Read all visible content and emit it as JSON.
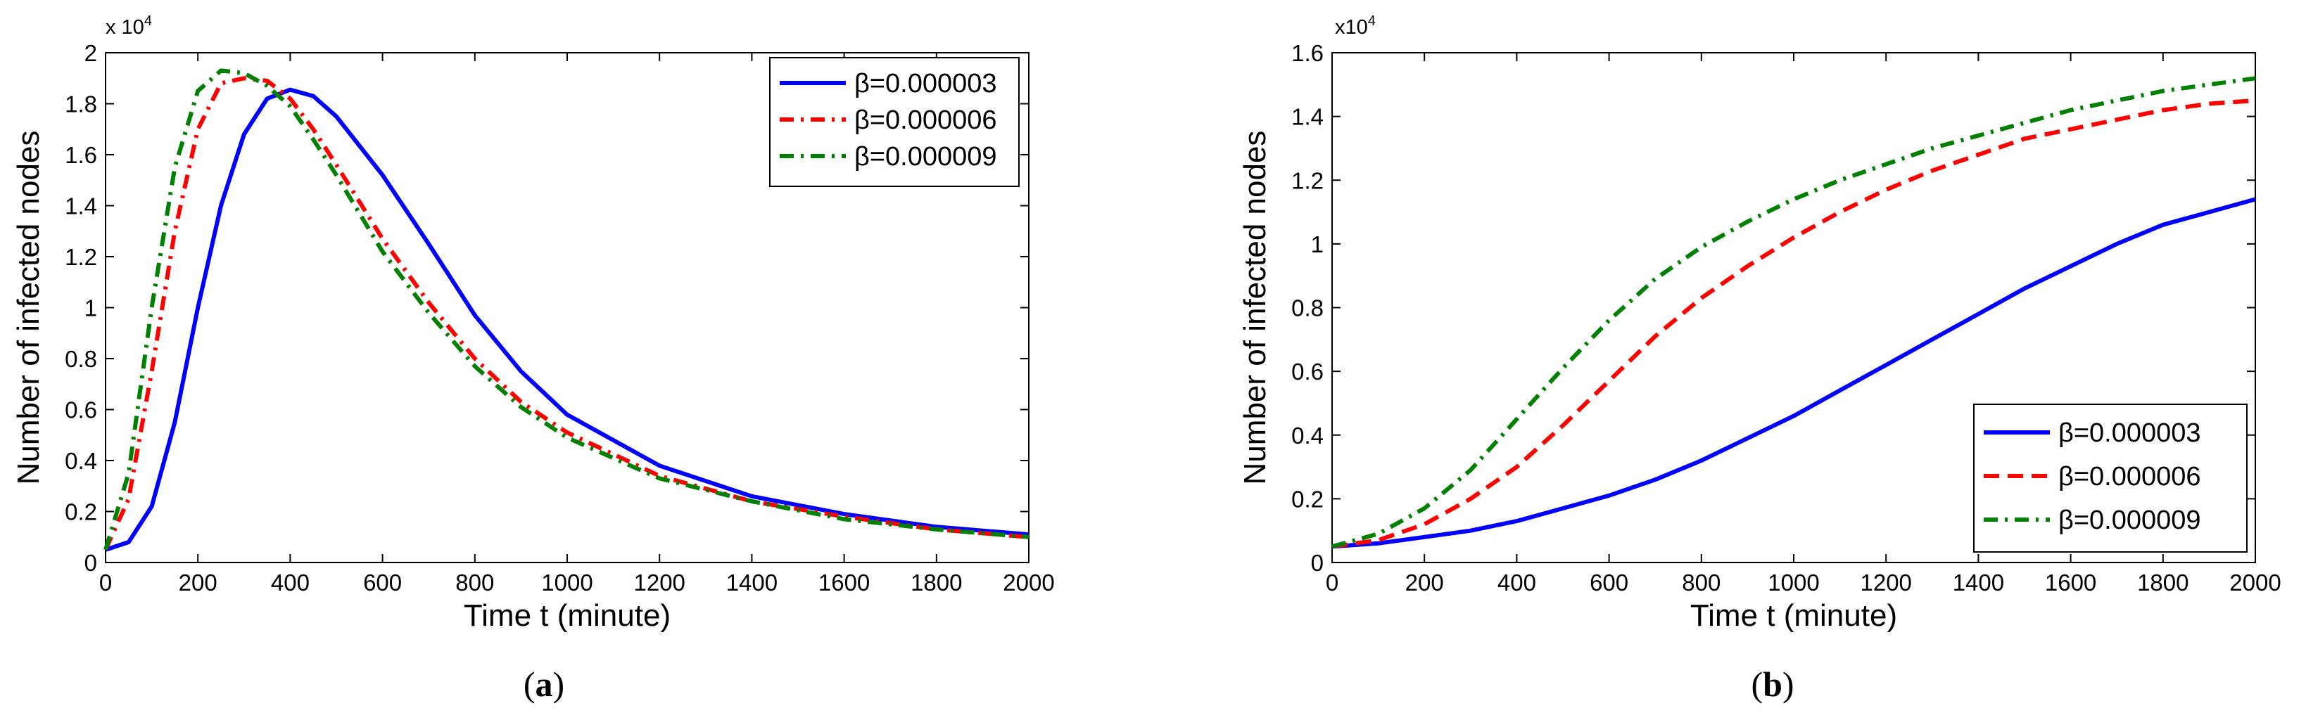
{
  "colors": {
    "beta1": "#0000ff",
    "beta2": "#ff0000",
    "beta3": "#008000"
  },
  "chart_data": [
    {
      "type": "line",
      "panel_label": "a",
      "xlabel": "Time t (minute)",
      "ylabel": "Number of infected nodes",
      "multiplier_base": "x 10",
      "multiplier_exp": "4",
      "xlim": [
        0,
        2000
      ],
      "ylim": [
        0,
        2
      ],
      "xticks": [
        0,
        200,
        400,
        600,
        800,
        1000,
        1200,
        1400,
        1600,
        1800,
        2000
      ],
      "xtick_labels": [
        "0",
        "200",
        "400",
        "600",
        "800",
        "1000",
        "1200",
        "1400",
        "1600",
        "1800",
        "2000"
      ],
      "yticks": [
        0,
        0.2,
        0.4,
        0.6,
        0.8,
        1,
        1.2,
        1.4,
        1.6,
        1.8,
        2
      ],
      "ytick_labels": [
        "0",
        "0.2",
        "0.4",
        "0.6",
        "0.8",
        "1",
        "1.2",
        "1.4",
        "1.6",
        "1.8",
        "2"
      ],
      "legend_position": "top-right",
      "series": [
        {
          "name": "β=0.000003",
          "color": "#0000ff",
          "style": "solid",
          "x": [
            0,
            50,
            100,
            150,
            200,
            250,
            300,
            350,
            400,
            450,
            500,
            600,
            700,
            800,
            900,
            1000,
            1200,
            1400,
            1600,
            1800,
            2000
          ],
          "y": [
            0.05,
            0.08,
            0.22,
            0.55,
            1.0,
            1.4,
            1.68,
            1.82,
            1.855,
            1.83,
            1.75,
            1.52,
            1.25,
            0.97,
            0.75,
            0.58,
            0.38,
            0.26,
            0.19,
            0.14,
            0.11
          ]
        },
        {
          "name": "β=0.000006",
          "color": "#ff0000",
          "style": "dashdot",
          "x": [
            0,
            50,
            100,
            150,
            200,
            250,
            300,
            350,
            400,
            450,
            500,
            600,
            700,
            800,
            900,
            1000,
            1200,
            1400,
            1600,
            1800,
            2000
          ],
          "y": [
            0.05,
            0.25,
            0.75,
            1.3,
            1.7,
            1.88,
            1.9,
            1.89,
            1.82,
            1.7,
            1.56,
            1.27,
            1.02,
            0.8,
            0.63,
            0.51,
            0.34,
            0.24,
            0.18,
            0.13,
            0.1
          ]
        },
        {
          "name": "β=0.000009",
          "color": "#008000",
          "style": "dashdot",
          "x": [
            0,
            50,
            100,
            150,
            200,
            250,
            300,
            350,
            400,
            450,
            500,
            600,
            700,
            800,
            900,
            1000,
            1200,
            1400,
            1600,
            1800,
            2000
          ],
          "y": [
            0.05,
            0.35,
            1.0,
            1.55,
            1.85,
            1.93,
            1.92,
            1.87,
            1.79,
            1.66,
            1.52,
            1.22,
            0.98,
            0.77,
            0.61,
            0.49,
            0.33,
            0.24,
            0.17,
            0.13,
            0.1
          ]
        }
      ]
    },
    {
      "type": "line",
      "panel_label": "b",
      "xlabel": "Time t (minute)",
      "ylabel": "Number of infected nodes",
      "multiplier_base": "x10",
      "multiplier_exp": "4",
      "xlim": [
        0,
        2000
      ],
      "ylim": [
        0,
        1.6
      ],
      "xticks": [
        0,
        200,
        400,
        600,
        800,
        1000,
        1200,
        1400,
        1600,
        1800,
        2000
      ],
      "xtick_labels": [
        "0",
        "200",
        "400",
        "600",
        "800",
        "1000",
        "1200",
        "1400",
        "1600",
        "1800",
        "2000"
      ],
      "yticks": [
        0,
        0.2,
        0.4,
        0.6,
        0.8,
        1,
        1.2,
        1.4,
        1.6
      ],
      "ytick_labels": [
        "0",
        "0.2",
        "0.4",
        "0.6",
        "0.8",
        "1",
        "1.2",
        "1.4",
        "1.6"
      ],
      "legend_position": "bottom-right",
      "series": [
        {
          "name": "β=0.000003",
          "color": "#0000ff",
          "style": "solid",
          "x": [
            0,
            100,
            200,
            300,
            400,
            500,
            600,
            700,
            800,
            900,
            1000,
            1100,
            1200,
            1300,
            1400,
            1500,
            1600,
            1700,
            1800,
            1900,
            2000
          ],
          "y": [
            0.05,
            0.06,
            0.08,
            0.1,
            0.13,
            0.17,
            0.21,
            0.26,
            0.32,
            0.39,
            0.46,
            0.54,
            0.62,
            0.7,
            0.78,
            0.86,
            0.93,
            1.0,
            1.06,
            1.1,
            1.14
          ]
        },
        {
          "name": "β=0.000006",
          "color": "#ff0000",
          "style": "dashed",
          "x": [
            0,
            100,
            200,
            300,
            400,
            500,
            600,
            700,
            800,
            900,
            1000,
            1100,
            1200,
            1300,
            1400,
            1500,
            1600,
            1700,
            1800,
            1900,
            2000
          ],
          "y": [
            0.05,
            0.07,
            0.12,
            0.2,
            0.3,
            0.43,
            0.57,
            0.71,
            0.83,
            0.93,
            1.02,
            1.1,
            1.17,
            1.23,
            1.28,
            1.33,
            1.36,
            1.39,
            1.42,
            1.44,
            1.45
          ]
        },
        {
          "name": "β=0.000009",
          "color": "#008000",
          "style": "dashdot",
          "x": [
            0,
            100,
            200,
            300,
            400,
            500,
            600,
            700,
            800,
            900,
            1000,
            1100,
            1200,
            1300,
            1400,
            1500,
            1600,
            1700,
            1800,
            1900,
            2000
          ],
          "y": [
            0.05,
            0.09,
            0.17,
            0.29,
            0.45,
            0.61,
            0.76,
            0.89,
            0.99,
            1.07,
            1.14,
            1.2,
            1.25,
            1.3,
            1.34,
            1.38,
            1.42,
            1.45,
            1.48,
            1.5,
            1.52
          ]
        }
      ]
    }
  ]
}
